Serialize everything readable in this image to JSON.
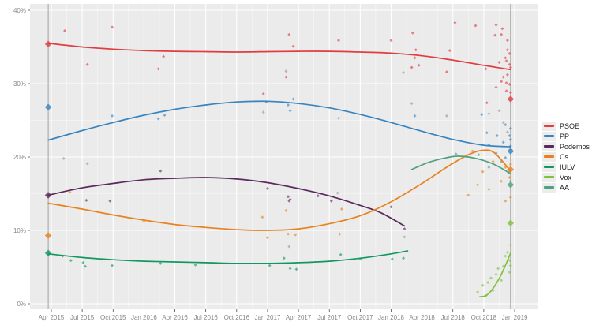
{
  "chart_data": {
    "type": "line",
    "title": "",
    "xlabel": "",
    "ylabel": "",
    "x_axis": {
      "tick_months": [
        0,
        3,
        6,
        9,
        12,
        15,
        18,
        21,
        24,
        27,
        30,
        33,
        36,
        39,
        42,
        45
      ],
      "tick_labels": [
        "Apr 2015",
        "Jul 2015",
        "Oct 2015",
        "Jan 2016",
        "Apr 2016",
        "Jul 2016",
        "Oct 2016",
        "Jan 2017",
        "Apr 2017",
        "Jul 2017",
        "Oct 2017",
        "Jan 2018",
        "Apr 2018",
        "Jul 2018",
        "Oct 2018",
        "Jan 2019"
      ]
    },
    "y_axis": {
      "tick_values": [
        0,
        10,
        20,
        30,
        40
      ],
      "tick_labels": [
        "0%",
        "10%",
        "20%",
        "30%",
        "40%"
      ],
      "minor_values": [
        5,
        15,
        25,
        35
      ],
      "ylim": [
        -0.8,
        40.9
      ]
    },
    "layout": {
      "plot_bg": "#ebebeb",
      "grid_major": "#ffffff",
      "grid_minor": "#ffffff",
      "axis_text_color": "#878787",
      "tick_mark_color": "#333333",
      "reference_line_color": "#9b9b9b",
      "legend_position": "right",
      "grid": "on"
    },
    "reference_lines": [
      {
        "month": -0.3
      },
      {
        "month": 44.6
      }
    ],
    "series": [
      {
        "name": "PSOE",
        "color": "#e23b41",
        "line": [
          [
            -0.3,
            35.5
          ],
          [
            3,
            35.0
          ],
          [
            6,
            34.7
          ],
          [
            9,
            34.5
          ],
          [
            12,
            34.4
          ],
          [
            15,
            34.35
          ],
          [
            18,
            34.3
          ],
          [
            21,
            34.35
          ],
          [
            24,
            34.4
          ],
          [
            27,
            34.4
          ],
          [
            30,
            34.3
          ],
          [
            33,
            34.15
          ],
          [
            36,
            33.8
          ],
          [
            39,
            33.2
          ],
          [
            42,
            32.5
          ],
          [
            44.6,
            31.9
          ]
        ],
        "points": [
          [
            1.3,
            37.2
          ],
          [
            5.9,
            37.7
          ],
          [
            3.5,
            32.6
          ],
          [
            10.9,
            33.7
          ],
          [
            10.4,
            32.0
          ],
          [
            20.6,
            28.6
          ],
          [
            22.8,
            30.9
          ],
          [
            23.1,
            36.7
          ],
          [
            23.5,
            35.1
          ],
          [
            27.9,
            35.9
          ],
          [
            33.0,
            35.9
          ],
          [
            35.1,
            36.9
          ],
          [
            35.4,
            34.6
          ],
          [
            35.3,
            33.5
          ],
          [
            35.7,
            32.5
          ],
          [
            35.0,
            32.2
          ],
          [
            38.7,
            34.5
          ],
          [
            38.4,
            31.6
          ],
          [
            39.2,
            38.3
          ],
          [
            41.2,
            37.9
          ],
          [
            42.2,
            32.0
          ],
          [
            42.3,
            27.4
          ],
          [
            43.1,
            36.6
          ],
          [
            43.2,
            38.0
          ],
          [
            43.2,
            29.5
          ],
          [
            43.5,
            32.9
          ],
          [
            43.7,
            36.7
          ],
          [
            43.7,
            30.3
          ],
          [
            43.8,
            37.5
          ],
          [
            43.9,
            30.9
          ],
          [
            44.1,
            33.5
          ],
          [
            44.2,
            33.1
          ],
          [
            44.2,
            30.1
          ],
          [
            44.2,
            29.0
          ],
          [
            44.3,
            35.9
          ],
          [
            44.3,
            34.6
          ],
          [
            44.3,
            31.2
          ],
          [
            44.5,
            34.1
          ],
          [
            44.5,
            32.6
          ],
          [
            44.5,
            29.9
          ],
          [
            44.6,
            32.2
          ],
          [
            44.6,
            28.8
          ]
        ],
        "elections": [
          [
            -0.3,
            35.4
          ],
          [
            44.6,
            27.9
          ]
        ]
      },
      {
        "name": "PP",
        "color": "#3884bf",
        "line": [
          [
            -0.3,
            22.3
          ],
          [
            3,
            23.6
          ],
          [
            6,
            24.7
          ],
          [
            9,
            25.7
          ],
          [
            12,
            26.5
          ],
          [
            15,
            27.1
          ],
          [
            18,
            27.5
          ],
          [
            21,
            27.6
          ],
          [
            24,
            27.3
          ],
          [
            27,
            26.7
          ],
          [
            30,
            25.8
          ],
          [
            33,
            24.7
          ],
          [
            36,
            23.5
          ],
          [
            39,
            22.4
          ],
          [
            42,
            21.6
          ],
          [
            44.6,
            21.4
          ]
        ],
        "points": [
          [
            5.9,
            25.6
          ],
          [
            10.4,
            25.2
          ],
          [
            11.0,
            25.7
          ],
          [
            20.9,
            27.5
          ],
          [
            23.0,
            27.1
          ],
          [
            23.2,
            26.3
          ],
          [
            23.5,
            27.9
          ],
          [
            35.3,
            25.6
          ],
          [
            41.8,
            25.8
          ],
          [
            42.3,
            23.3
          ],
          [
            42.5,
            21.7
          ],
          [
            43.2,
            20.5
          ],
          [
            43.3,
            22.9
          ],
          [
            43.9,
            22.0
          ],
          [
            44.1,
            24.4
          ],
          [
            44.1,
            19.9
          ],
          [
            44.5,
            22.9
          ],
          [
            44.6,
            23.9
          ],
          [
            44.6,
            22.4
          ],
          [
            44.6,
            21.5
          ],
          [
            44.6,
            21.0
          ]
        ],
        "elections": [
          [
            -0.3,
            26.8
          ],
          [
            44.6,
            20.8
          ]
        ]
      },
      {
        "name": "Podemos",
        "color": "#5a2a5c",
        "line": [
          [
            -0.3,
            14.8
          ],
          [
            3,
            15.8
          ],
          [
            6,
            16.4
          ],
          [
            9,
            16.9
          ],
          [
            12,
            17.1
          ],
          [
            15,
            17.2
          ],
          [
            18,
            17.0
          ],
          [
            21,
            16.5
          ],
          [
            24,
            15.7
          ],
          [
            27,
            14.7
          ],
          [
            30,
            13.4
          ],
          [
            32,
            12.4
          ],
          [
            34.3,
            10.6
          ]
        ],
        "points": [
          [
            3.4,
            14.1
          ],
          [
            5.7,
            14.0
          ],
          [
            10.6,
            18.1
          ],
          [
            21.0,
            15.7
          ],
          [
            23.0,
            14.6
          ],
          [
            23.1,
            14.0
          ],
          [
            23.2,
            14.2
          ],
          [
            25.9,
            14.7
          ],
          [
            27.2,
            14.0
          ],
          [
            33.0,
            13.2
          ],
          [
            34.3,
            10.2
          ]
        ],
        "elections": [
          [
            -0.3,
            14.8
          ]
        ]
      },
      {
        "name": "Cs",
        "color": "#e8821e",
        "line": [
          [
            -0.3,
            13.7
          ],
          [
            3,
            12.9
          ],
          [
            6,
            12.1
          ],
          [
            9,
            11.4
          ],
          [
            12,
            10.8
          ],
          [
            15,
            10.4
          ],
          [
            18,
            10.1
          ],
          [
            21,
            10.0
          ],
          [
            24,
            10.2
          ],
          [
            27,
            10.9
          ],
          [
            30,
            12.0
          ],
          [
            33,
            13.9
          ],
          [
            36,
            16.4
          ],
          [
            38.5,
            18.7
          ],
          [
            40.5,
            20.3
          ],
          [
            41.8,
            20.9
          ],
          [
            43,
            20.6
          ],
          [
            44.6,
            18.1
          ]
        ],
        "points": [
          [
            1.8,
            15.2
          ],
          [
            9.0,
            11.2
          ],
          [
            20.5,
            11.8
          ],
          [
            21.0,
            9.0
          ],
          [
            22.8,
            12.7
          ],
          [
            23.0,
            9.5
          ],
          [
            23.7,
            9.4
          ],
          [
            28.0,
            9.5
          ],
          [
            28.2,
            12.9
          ],
          [
            40.5,
            14.8
          ],
          [
            40.9,
            20.8
          ],
          [
            41.4,
            16.2
          ],
          [
            41.9,
            18.0
          ],
          [
            42.5,
            15.6
          ],
          [
            42.9,
            19.4
          ],
          [
            43.7,
            16.7
          ],
          [
            44.1,
            18.6
          ],
          [
            44.1,
            14.0
          ],
          [
            44.5,
            17.2
          ],
          [
            44.6,
            19.0
          ],
          [
            44.6,
            14.5
          ]
        ],
        "elections": [
          [
            -0.3,
            9.3
          ],
          [
            44.6,
            18.3
          ]
        ]
      },
      {
        "name": "IULV",
        "color": "#11975f",
        "line": [
          [
            -0.3,
            6.8
          ],
          [
            3,
            6.3
          ],
          [
            6,
            6.0
          ],
          [
            9,
            5.8
          ],
          [
            12,
            5.7
          ],
          [
            15,
            5.6
          ],
          [
            18,
            5.5
          ],
          [
            21,
            5.5
          ],
          [
            24,
            5.6
          ],
          [
            27,
            5.8
          ],
          [
            30,
            6.2
          ],
          [
            33,
            6.8
          ],
          [
            34.6,
            7.2
          ]
        ],
        "points": [
          [
            1.1,
            6.5
          ],
          [
            1.9,
            5.9
          ],
          [
            3.1,
            5.6
          ],
          [
            3.3,
            5.1
          ],
          [
            5.9,
            5.2
          ],
          [
            10.6,
            5.5
          ],
          [
            14.0,
            5.3
          ],
          [
            21.2,
            5.2
          ],
          [
            22.6,
            6.2
          ],
          [
            23.2,
            4.8
          ],
          [
            23.8,
            4.7
          ],
          [
            28.1,
            6.7
          ],
          [
            30.0,
            6.1
          ],
          [
            33.1,
            6.1
          ],
          [
            34.2,
            6.2
          ]
        ],
        "elections": [
          [
            -0.3,
            6.9
          ]
        ]
      },
      {
        "name": "Vox",
        "color": "#7fc13f",
        "line": [
          [
            41.6,
            0.95
          ],
          [
            42.2,
            1.1
          ],
          [
            42.8,
            1.9
          ],
          [
            43.4,
            3.2
          ],
          [
            44.0,
            4.9
          ],
          [
            44.6,
            6.9
          ]
        ],
        "points": [
          [
            41.4,
            1.6
          ],
          [
            41.9,
            2.5
          ],
          [
            42.2,
            1.1
          ],
          [
            42.4,
            2.9
          ],
          [
            42.7,
            3.5
          ],
          [
            42.9,
            1.8
          ],
          [
            43.2,
            4.0
          ],
          [
            43.4,
            4.8
          ],
          [
            43.7,
            3.2
          ],
          [
            43.9,
            5.1
          ],
          [
            44.1,
            6.5
          ],
          [
            44.3,
            7.0
          ],
          [
            44.5,
            5.9
          ],
          [
            44.5,
            4.3
          ],
          [
            44.6,
            5.2
          ],
          [
            44.6,
            8.0
          ]
        ],
        "elections": [
          [
            44.6,
            11.0
          ]
        ]
      },
      {
        "name": "AA",
        "color": "#51a27c",
        "line": [
          [
            35.0,
            18.3
          ],
          [
            36.5,
            19.2
          ],
          [
            38.0,
            19.8
          ],
          [
            39.3,
            20.1
          ],
          [
            40.5,
            20.0
          ],
          [
            41.8,
            19.6
          ],
          [
            43.0,
            19.0
          ],
          [
            43.8,
            18.4
          ],
          [
            44.6,
            17.7
          ]
        ],
        "points": [
          [
            39.3,
            20.4
          ],
          [
            41.5,
            20.3
          ],
          [
            42.5,
            18.6
          ],
          [
            43.7,
            19.4
          ],
          [
            44.5,
            18.0
          ],
          [
            44.6,
            16.7
          ]
        ],
        "elections": [
          [
            44.6,
            16.2
          ]
        ]
      }
    ],
    "other_points": {
      "color": "#8b8b8b",
      "points": [
        [
          1.2,
          19.8
        ],
        [
          3.5,
          19.1
        ],
        [
          20.6,
          26.1
        ],
        [
          22.8,
          31.7
        ],
        [
          27.8,
          15.1
        ],
        [
          27.9,
          25.3
        ],
        [
          23.1,
          7.8
        ],
        [
          34.2,
          31.5
        ],
        [
          34.3,
          9.1
        ],
        [
          35.0,
          27.3
        ],
        [
          38.4,
          25.6
        ],
        [
          42.5,
          25.9
        ],
        [
          43.5,
          26.3
        ],
        [
          43.9,
          24.7
        ],
        [
          44.3,
          23.4
        ]
      ]
    },
    "legend_items": [
      "PSOE",
      "PP",
      "Podemos",
      "Cs",
      "IULV",
      "Vox",
      "AA"
    ]
  }
}
